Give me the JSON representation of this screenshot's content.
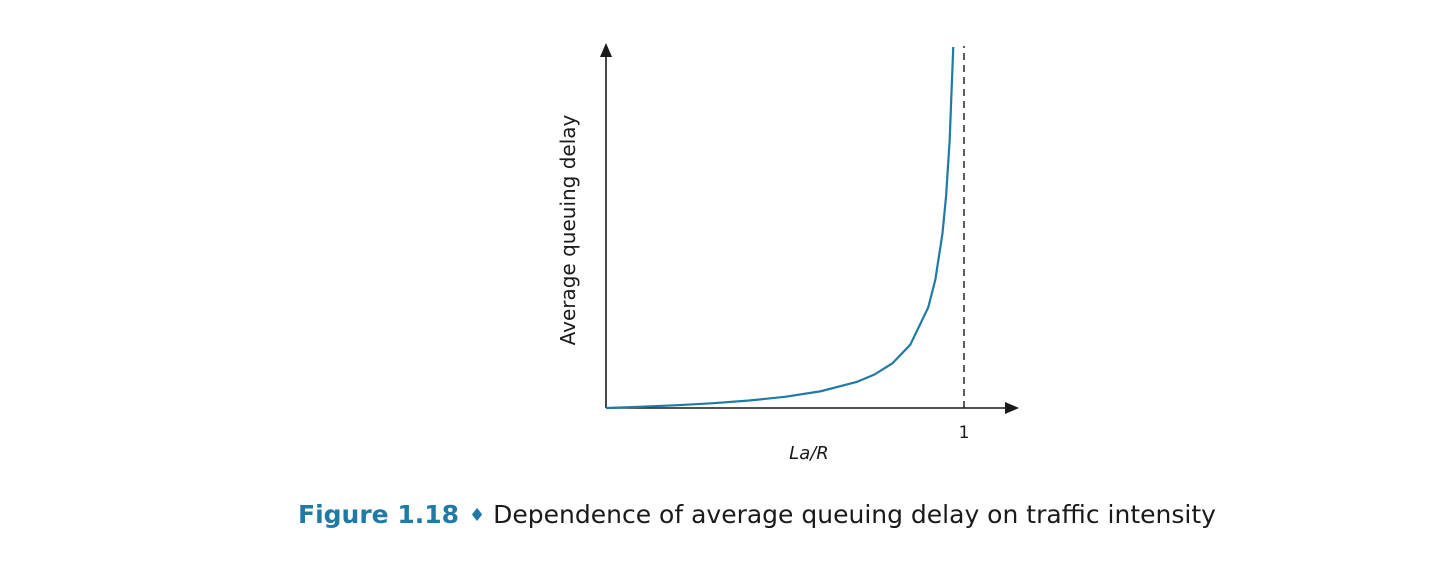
{
  "chart_data": {
    "type": "line",
    "ylabel": "Average queuing delay",
    "xlabel": "La/R",
    "x_ticks": [
      {
        "value": 1,
        "label": "1"
      }
    ],
    "xlim": [
      0,
      1.1
    ],
    "asymptote_x": 1,
    "series": [
      {
        "color": "#1f7aa6",
        "x": [
          0,
          0.1,
          0.2,
          0.3,
          0.4,
          0.5,
          0.6,
          0.7,
          0.75,
          0.8,
          0.85,
          0.9,
          0.92,
          0.94,
          0.95,
          0.96,
          0.97
        ],
        "y": [
          0,
          0.11,
          0.25,
          0.43,
          0.67,
          1.0,
          1.5,
          2.33,
          3.0,
          4.0,
          5.67,
          9.0,
          11.5,
          15.67,
          19.0,
          24.0,
          32.33
        ]
      }
    ],
    "grid": false,
    "legend": "none"
  },
  "caption": {
    "figure": "Figure 1.18",
    "separator": "♦",
    "text": "Dependence of average queuing delay on traffic intensity"
  }
}
